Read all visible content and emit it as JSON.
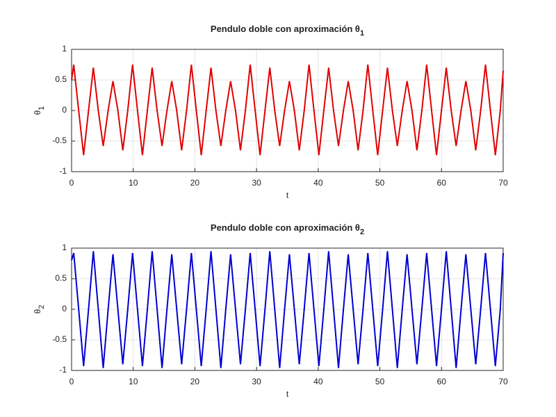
{
  "chart_data": [
    {
      "type": "line",
      "title": "Pendulo doble con aproximación θ",
      "title_subscript": "1",
      "xlabel": "t",
      "ylabel": "θ",
      "ylabel_subscript": "1",
      "xlim": [
        0,
        70
      ],
      "ylim": [
        -1,
        1
      ],
      "xticks": [
        0,
        10,
        20,
        30,
        40,
        50,
        60,
        70
      ],
      "yticks": [
        -1,
        -0.5,
        0,
        0.5,
        1
      ],
      "grid": true,
      "x": [
        0,
        0.35,
        1.15,
        1.95,
        2.75,
        3.53,
        4.33,
        5.13,
        5.93,
        6.71,
        7.51,
        8.31,
        9.11,
        9.89,
        10.69,
        11.49,
        12.29,
        13.07,
        13.87,
        14.67,
        15.47,
        16.25,
        17.05,
        17.85,
        18.65,
        19.43,
        20.23,
        21.03,
        21.83,
        22.61,
        23.41,
        24.21,
        25.01,
        25.79,
        26.59,
        27.39,
        28.19,
        28.97,
        29.77,
        30.57,
        31.37,
        32.15,
        32.95,
        33.75,
        34.55,
        35.33,
        36.13,
        36.93,
        37.73,
        38.51,
        39.31,
        40.11,
        40.91,
        41.69,
        42.49,
        43.29,
        44.09,
        44.87,
        45.67,
        46.47,
        47.27,
        48.05,
        48.85,
        49.65,
        50.45,
        51.23,
        52.03,
        52.83,
        53.63,
        54.41,
        55.21,
        56.01,
        56.81,
        57.59,
        58.39,
        59.19,
        59.99,
        60.77,
        61.57,
        62.37,
        63.17,
        63.95,
        64.75,
        65.55,
        66.35,
        67.13,
        67.93,
        68.73,
        69.53,
        70
      ],
      "series": [
        {
          "color": "#e00000",
          "values": [
            0.5,
            0.75,
            0,
            -0.73,
            0,
            0.7,
            0,
            -0.58,
            0,
            0.48,
            0,
            -0.65,
            0,
            0.75,
            0,
            -0.73,
            0,
            0.7,
            0,
            -0.58,
            0,
            0.48,
            0,
            -0.65,
            0,
            0.75,
            0,
            -0.73,
            0,
            0.7,
            0,
            -0.58,
            0,
            0.48,
            0,
            -0.65,
            0,
            0.75,
            0,
            -0.73,
            0,
            0.7,
            0,
            -0.58,
            0,
            0.48,
            0,
            -0.65,
            0,
            0.75,
            0,
            -0.73,
            0,
            0.7,
            0,
            -0.58,
            0,
            0.48,
            0,
            -0.65,
            0,
            0.75,
            0,
            -0.73,
            0,
            0.7,
            0,
            -0.58,
            0,
            0.48,
            0,
            -0.65,
            0,
            0.75,
            0,
            -0.73,
            0,
            0.7,
            0,
            -0.58,
            0,
            0.48,
            0,
            -0.65,
            0,
            0.75,
            0,
            -0.73,
            0,
            0.65
          ]
        }
      ]
    },
    {
      "type": "line",
      "title": "Pendulo doble con aproximación θ",
      "title_subscript": "2",
      "xlabel": "t",
      "ylabel": "θ",
      "ylabel_subscript": "2",
      "xlim": [
        0,
        70
      ],
      "ylim": [
        -1,
        1
      ],
      "xticks": [
        0,
        10,
        20,
        30,
        40,
        50,
        60,
        70
      ],
      "yticks": [
        -1,
        -0.5,
        0,
        0.5,
        1
      ],
      "grid": true,
      "x": [
        0,
        0.35,
        1.15,
        1.95,
        2.75,
        3.53,
        4.33,
        5.13,
        5.93,
        6.71,
        7.51,
        8.31,
        9.11,
        9.89,
        10.69,
        11.49,
        12.29,
        13.07,
        13.87,
        14.67,
        15.47,
        16.25,
        17.05,
        17.85,
        18.65,
        19.43,
        20.23,
        21.03,
        21.83,
        22.61,
        23.41,
        24.21,
        25.01,
        25.79,
        26.59,
        27.39,
        28.19,
        28.97,
        29.77,
        30.57,
        31.37,
        32.15,
        32.95,
        33.75,
        34.55,
        35.33,
        36.13,
        36.93,
        37.73,
        38.51,
        39.31,
        40.11,
        40.91,
        41.69,
        42.49,
        43.29,
        44.09,
        44.87,
        45.67,
        46.47,
        47.27,
        48.05,
        48.85,
        49.65,
        50.45,
        51.23,
        52.03,
        52.83,
        53.63,
        54.41,
        55.21,
        56.01,
        56.81,
        57.59,
        58.39,
        59.19,
        59.99,
        60.77,
        61.57,
        62.37,
        63.17,
        63.95,
        64.75,
        65.55,
        66.35,
        67.13,
        67.93,
        68.73,
        69.53,
        70
      ],
      "series": [
        {
          "color": "#0000d0",
          "values": [
            0.8,
            0.92,
            0,
            -0.93,
            0,
            0.95,
            0,
            -0.96,
            0,
            0.9,
            0,
            -0.9,
            0,
            0.92,
            0,
            -0.93,
            0,
            0.95,
            0,
            -0.96,
            0,
            0.9,
            0,
            -0.9,
            0,
            0.92,
            0,
            -0.93,
            0,
            0.95,
            0,
            -0.96,
            0,
            0.9,
            0,
            -0.9,
            0,
            0.92,
            0,
            -0.93,
            0,
            0.95,
            0,
            -0.96,
            0,
            0.9,
            0,
            -0.9,
            0,
            0.92,
            0,
            -0.93,
            0,
            0.95,
            0,
            -0.96,
            0,
            0.9,
            0,
            -0.9,
            0,
            0.92,
            0,
            -0.93,
            0,
            0.95,
            0,
            -0.96,
            0,
            0.9,
            0,
            -0.9,
            0,
            0.92,
            0,
            -0.93,
            0,
            0.95,
            0,
            -0.96,
            0,
            0.9,
            0,
            -0.9,
            0,
            0.92,
            0,
            -0.93,
            0,
            0.92
          ]
        }
      ]
    }
  ]
}
